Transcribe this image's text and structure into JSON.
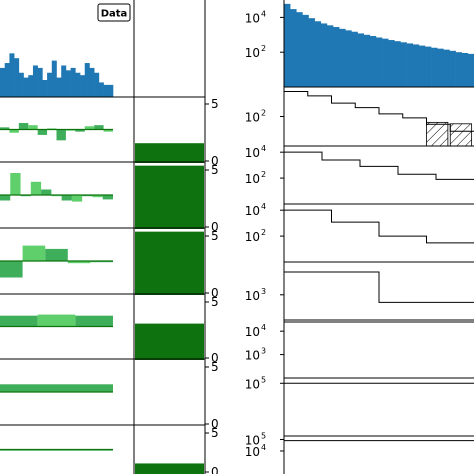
{
  "chart_data": {
    "type": "bar",
    "legend": {
      "label": "Data",
      "placement": "top-right of left column"
    },
    "colors": {
      "data_blue": "#1f77b4",
      "dark_green": "#0e730e",
      "mid_green": "#3fae5a",
      "light_green": "#5fcf6b",
      "axis": "#000000"
    },
    "middle_axis_ticks": [
      "5",
      "0"
    ],
    "left_column_rows": [
      {
        "row": 1,
        "kind": "data-histogram",
        "values": [
          12,
          14,
          18,
          16,
          10,
          8,
          9,
          13,
          12,
          7,
          10,
          15,
          8,
          13,
          11,
          12,
          10,
          9,
          14,
          12,
          10,
          6,
          5,
          5
        ]
      },
      {
        "row": 2,
        "kind": "residual",
        "values": [
          0.2,
          -0.3,
          0.6,
          0.4,
          -0.5,
          0.1,
          -1.0,
          0.0,
          -0.2,
          0.3,
          0.4,
          -0.2
        ]
      },
      {
        "row": 3,
        "kind": "residual",
        "values": [
          -0.5,
          2.0,
          0.0,
          1.2,
          0.5,
          0.0,
          -0.5,
          -0.6,
          0.0,
          -0.2,
          -0.4
        ]
      },
      {
        "row": 4,
        "kind": "residual",
        "values": [
          -1.5,
          1.4,
          1.1,
          -0.2,
          0.0
        ]
      },
      {
        "row": 5,
        "kind": "residual",
        "values": [
          1.0,
          1.1,
          1.0
        ]
      },
      {
        "row": 6,
        "kind": "residual",
        "values": [
          0.7
        ]
      },
      {
        "row": 7,
        "kind": "residual",
        "values": [
          0.0
        ]
      }
    ],
    "middle_column_rows": [
      {
        "row": 2,
        "value": 1.5,
        "ylim": [
          0,
          5
        ]
      },
      {
        "row": 3,
        "value": 4.8,
        "ylim": [
          0,
          5
        ]
      },
      {
        "row": 4,
        "value": 4.8,
        "ylim": [
          0,
          5
        ]
      },
      {
        "row": 5,
        "value": 2.8,
        "ylim": [
          0,
          5
        ]
      },
      {
        "row": 6,
        "value": 0.0,
        "ylim": [
          0,
          5
        ]
      },
      {
        "row": 7,
        "value": 1.1,
        "ylim": [
          0,
          5
        ]
      }
    ],
    "right_column_rows": [
      {
        "row": 1,
        "scale": "log",
        "ticks": [
          {
            "base": "10",
            "exp": "4",
            "value": 10000
          },
          {
            "base": "10",
            "exp": "2",
            "value": 100
          }
        ],
        "ylim": [
          1,
          100000
        ],
        "values": [
          60000,
          30000,
          20000,
          14000,
          9000,
          6000,
          4500,
          3500,
          2800,
          2200,
          1800,
          1500,
          1200,
          1000,
          850,
          700,
          600,
          500,
          430,
          370,
          320,
          280,
          240,
          210,
          180,
          160,
          140,
          120,
          100,
          90,
          80
        ]
      },
      {
        "row": 2,
        "scale": "log",
        "ticks": [
          {
            "base": "10",
            "exp": "2",
            "value": 100
          }
        ],
        "ylim": [
          1,
          10000
        ],
        "values": [
          5000,
          2500,
          800,
          400,
          150,
          80,
          30,
          10
        ],
        "hatched": [
          {
            "index": 6,
            "value": 10
          },
          {
            "index": 7,
            "value": 8
          }
        ]
      },
      {
        "row": 3,
        "scale": "log",
        "ticks": [
          {
            "base": "10",
            "exp": "4",
            "value": 10000
          },
          {
            "base": "10",
            "exp": "2",
            "value": 100
          }
        ],
        "ylim": [
          1,
          30000
        ],
        "values": [
          10000,
          2500,
          800,
          200,
          80
        ]
      },
      {
        "row": 4,
        "scale": "log",
        "ticks": [
          {
            "base": "10",
            "exp": "4",
            "value": 10000
          },
          {
            "base": "10",
            "exp": "2",
            "value": 100
          }
        ],
        "ylim": [
          1,
          30000
        ],
        "values": [
          10000,
          1200,
          100,
          30
        ]
      },
      {
        "row": 5,
        "scale": "log",
        "ticks": [
          {
            "base": "10",
            "exp": "3",
            "value": 1000
          }
        ],
        "ylim": [
          100,
          20000
        ],
        "values": [
          8000,
          500
        ]
      },
      {
        "row": 6,
        "scale": "log",
        "ticks": [
          {
            "base": "10",
            "exp": "4",
            "value": 10000
          },
          {
            "base": "10",
            "exp": "3",
            "value": 1000
          }
        ],
        "ylim": [
          100,
          30000
        ],
        "values": [
          25000
        ]
      },
      {
        "row": 7,
        "scale": "log",
        "ticks": [
          {
            "base": "10",
            "exp": "5",
            "value": 100000
          }
        ],
        "ylim": [
          100,
          200000
        ],
        "values": [
          100000
        ]
      },
      {
        "row": 8,
        "scale": "log",
        "ticks": [
          {
            "base": "10",
            "exp": "5",
            "value": 100000
          },
          {
            "base": "10",
            "exp": "4",
            "value": 10000
          }
        ],
        "ylim": [
          100,
          200000
        ],
        "values": [
          80000
        ]
      }
    ]
  }
}
